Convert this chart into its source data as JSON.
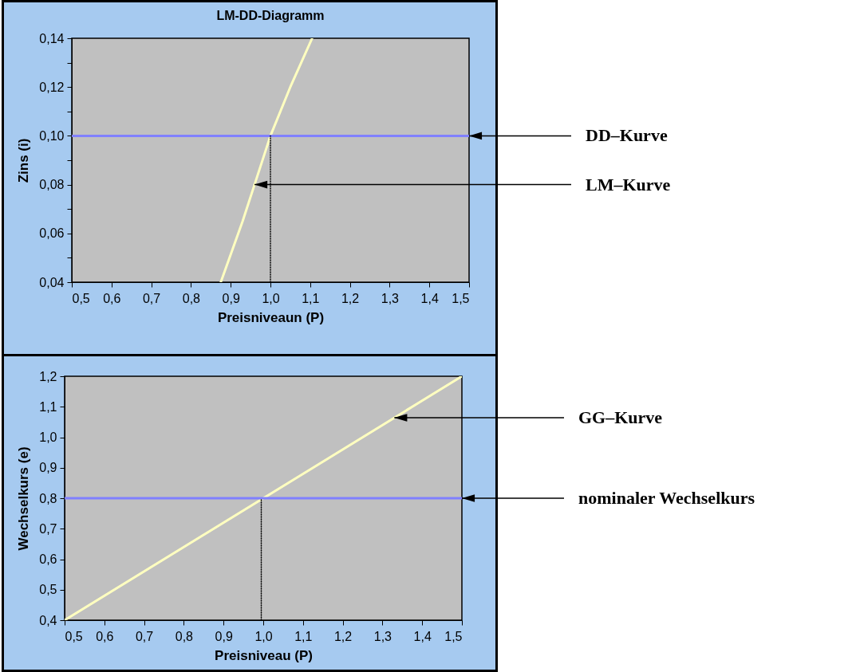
{
  "chart_data": [
    {
      "type": "line",
      "title": "LM-DD-Diagramm",
      "xlabel": "Preisniveaun (P)",
      "ylabel": "Zins (i)",
      "xlim": [
        0.5,
        1.5
      ],
      "ylim": [
        0.04,
        0.14
      ],
      "xticks": [
        {
          "value": 0.5,
          "label": "0,5"
        },
        {
          "value": 0.6,
          "label": "0,6"
        },
        {
          "value": 0.7,
          "label": "0,7"
        },
        {
          "value": 0.8,
          "label": "0,8"
        },
        {
          "value": 0.9,
          "label": "0,9"
        },
        {
          "value": 1.0,
          "label": "1,0"
        },
        {
          "value": 1.1,
          "label": "1,1"
        },
        {
          "value": 1.2,
          "label": "1,2"
        },
        {
          "value": 1.3,
          "label": "1,3"
        },
        {
          "value": 1.4,
          "label": "1,4"
        },
        {
          "value": 1.5,
          "label": "1,5"
        }
      ],
      "yticks": [
        {
          "value": 0.04,
          "label": "0,04"
        },
        {
          "value": 0.05,
          "label": null
        },
        {
          "value": 0.06,
          "label": "0,06"
        },
        {
          "value": 0.07,
          "label": null
        },
        {
          "value": 0.08,
          "label": "0,08"
        },
        {
          "value": 0.09,
          "label": null
        },
        {
          "value": 0.1,
          "label": "0,10"
        },
        {
          "value": 0.11,
          "label": null
        },
        {
          "value": 0.12,
          "label": "0,12"
        },
        {
          "value": 0.13,
          "label": null
        },
        {
          "value": 0.14,
          "label": "0,14"
        }
      ],
      "series": [
        {
          "color": "#ffffc0",
          "x": [
            0.875,
            0.93,
            0.96,
            1.0,
            1.05,
            1.105
          ],
          "values": [
            0.04,
            0.065,
            0.08,
            0.1,
            0.12,
            0.14
          ]
        },
        {
          "color": "#8080ff",
          "x": [
            0.5,
            1.5
          ],
          "values": [
            0.1,
            0.1
          ]
        },
        {
          "color": "#000000",
          "line_style": "dotted",
          "x": [
            1.0,
            1.0
          ],
          "values": [
            0.04,
            0.1
          ]
        }
      ],
      "annotations": [
        {
          "text": "DD–Kurve",
          "x": 1.5,
          "y": 0.1
        },
        {
          "text": "LM–Kurve",
          "x": 0.96,
          "y": 0.08
        }
      ]
    },
    {
      "type": "line",
      "xlabel": "Preisniveau (P)",
      "ylabel": "Wechselkurs (e)",
      "xlim": [
        0.5,
        1.5
      ],
      "ylim": [
        0.4,
        1.2
      ],
      "xticks": [
        {
          "value": 0.5,
          "label": "0,5"
        },
        {
          "value": 0.6,
          "label": "0,6"
        },
        {
          "value": 0.7,
          "label": "0,7"
        },
        {
          "value": 0.8,
          "label": "0,8"
        },
        {
          "value": 0.9,
          "label": "0,9"
        },
        {
          "value": 1.0,
          "label": "1,0"
        },
        {
          "value": 1.1,
          "label": "1,1"
        },
        {
          "value": 1.2,
          "label": "1,2"
        },
        {
          "value": 1.3,
          "label": "1,3"
        },
        {
          "value": 1.4,
          "label": "1,4"
        },
        {
          "value": 1.5,
          "label": "1,5"
        }
      ],
      "yticks": [
        {
          "value": 0.4,
          "label": "0,4"
        },
        {
          "value": 0.5,
          "label": "0,5"
        },
        {
          "value": 0.6,
          "label": "0,6"
        },
        {
          "value": 0.7,
          "label": "0,7"
        },
        {
          "value": 0.8,
          "label": "0,8"
        },
        {
          "value": 0.9,
          "label": "0,9"
        },
        {
          "value": 1.0,
          "label": "1,0"
        },
        {
          "value": 1.1,
          "label": "1,1"
        },
        {
          "value": 1.2,
          "label": "1,2"
        }
      ],
      "series": [
        {
          "color": "#ffffc0",
          "x": [
            0.5,
            1.5
          ],
          "values": [
            0.4,
            1.2
          ]
        },
        {
          "color": "#8080ff",
          "x": [
            0.5,
            1.5
          ],
          "values": [
            0.8,
            0.8
          ]
        },
        {
          "color": "#000000",
          "line_style": "dotted",
          "x": [
            0.995,
            0.995
          ],
          "values": [
            0.4,
            0.8
          ]
        }
      ],
      "annotations": [
        {
          "text": "GG–Kurve",
          "x": 1.33,
          "y": 1.064
        },
        {
          "text": "nominaler Wechselkurs",
          "x": 1.5,
          "y": 0.8
        }
      ]
    }
  ]
}
